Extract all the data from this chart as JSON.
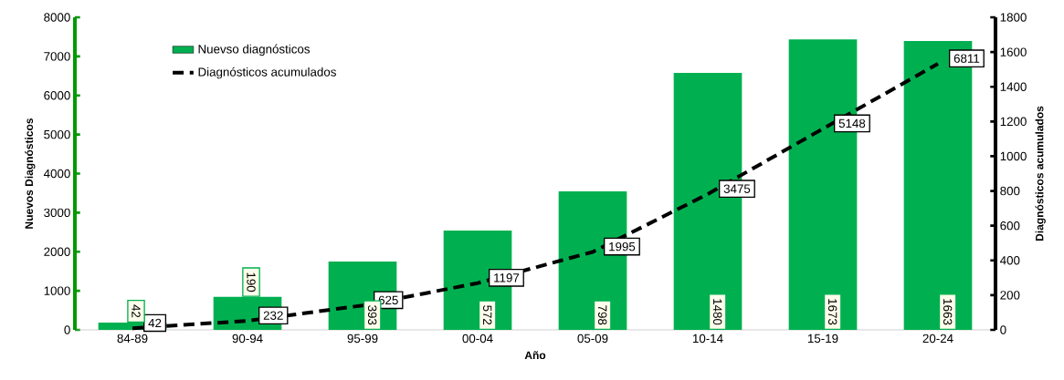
{
  "chart_data": {
    "type": "bar",
    "categories": [
      "84-89",
      "90-94",
      "95-99",
      "00-04",
      "05-09",
      "10-14",
      "15-19",
      "20-24"
    ],
    "xlabel": "Año",
    "ylabel": "Nuevos Diagnósticos",
    "y2label": "Diagnósticos acumulados",
    "series": [
      {
        "name": "Nuevso diagnósticos",
        "axis": "y2",
        "color": "#00b050",
        "values": [
          42,
          190,
          393,
          572,
          798,
          1480,
          1673,
          1663
        ]
      },
      {
        "name": "Diagnósticos acumulados",
        "type": "line",
        "axis": "y",
        "color": "#000000",
        "line_style": "dashed",
        "marker": "none",
        "values": [
          42,
          232,
          625,
          1197,
          1995,
          3475,
          5148,
          6811
        ]
      }
    ],
    "ylim": [
      0,
      8000
    ],
    "yticks": [
      0,
      1000,
      2000,
      3000,
      4000,
      5000,
      6000,
      7000,
      8000
    ],
    "y2lim": [
      0,
      1800
    ],
    "y2ticks": [
      0,
      200,
      400,
      600,
      800,
      1000,
      1200,
      1400,
      1600,
      1800
    ],
    "data_labels": true,
    "grid": false,
    "legend": "top left"
  }
}
